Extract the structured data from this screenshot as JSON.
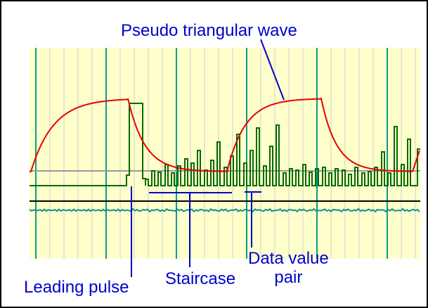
{
  "labels": {
    "title": "Pseudo triangular wave",
    "leading_pulse": "Leading pulse",
    "staircase": "Staircase",
    "data_value_pair_line1": "Data value",
    "data_value_pair_line2": "pair"
  },
  "colors": {
    "plot_background": "#ffffcc",
    "minor_grid": "#cfcfcf",
    "major_grid": "#0b9a90",
    "triangular_wave": "#e80000",
    "pulse_trace": "#006a00",
    "baseline_trace": "#0f8f8f",
    "reference_line": "#9a9a9a",
    "black_line": "#000000",
    "annotation": "#0000cc"
  }
}
